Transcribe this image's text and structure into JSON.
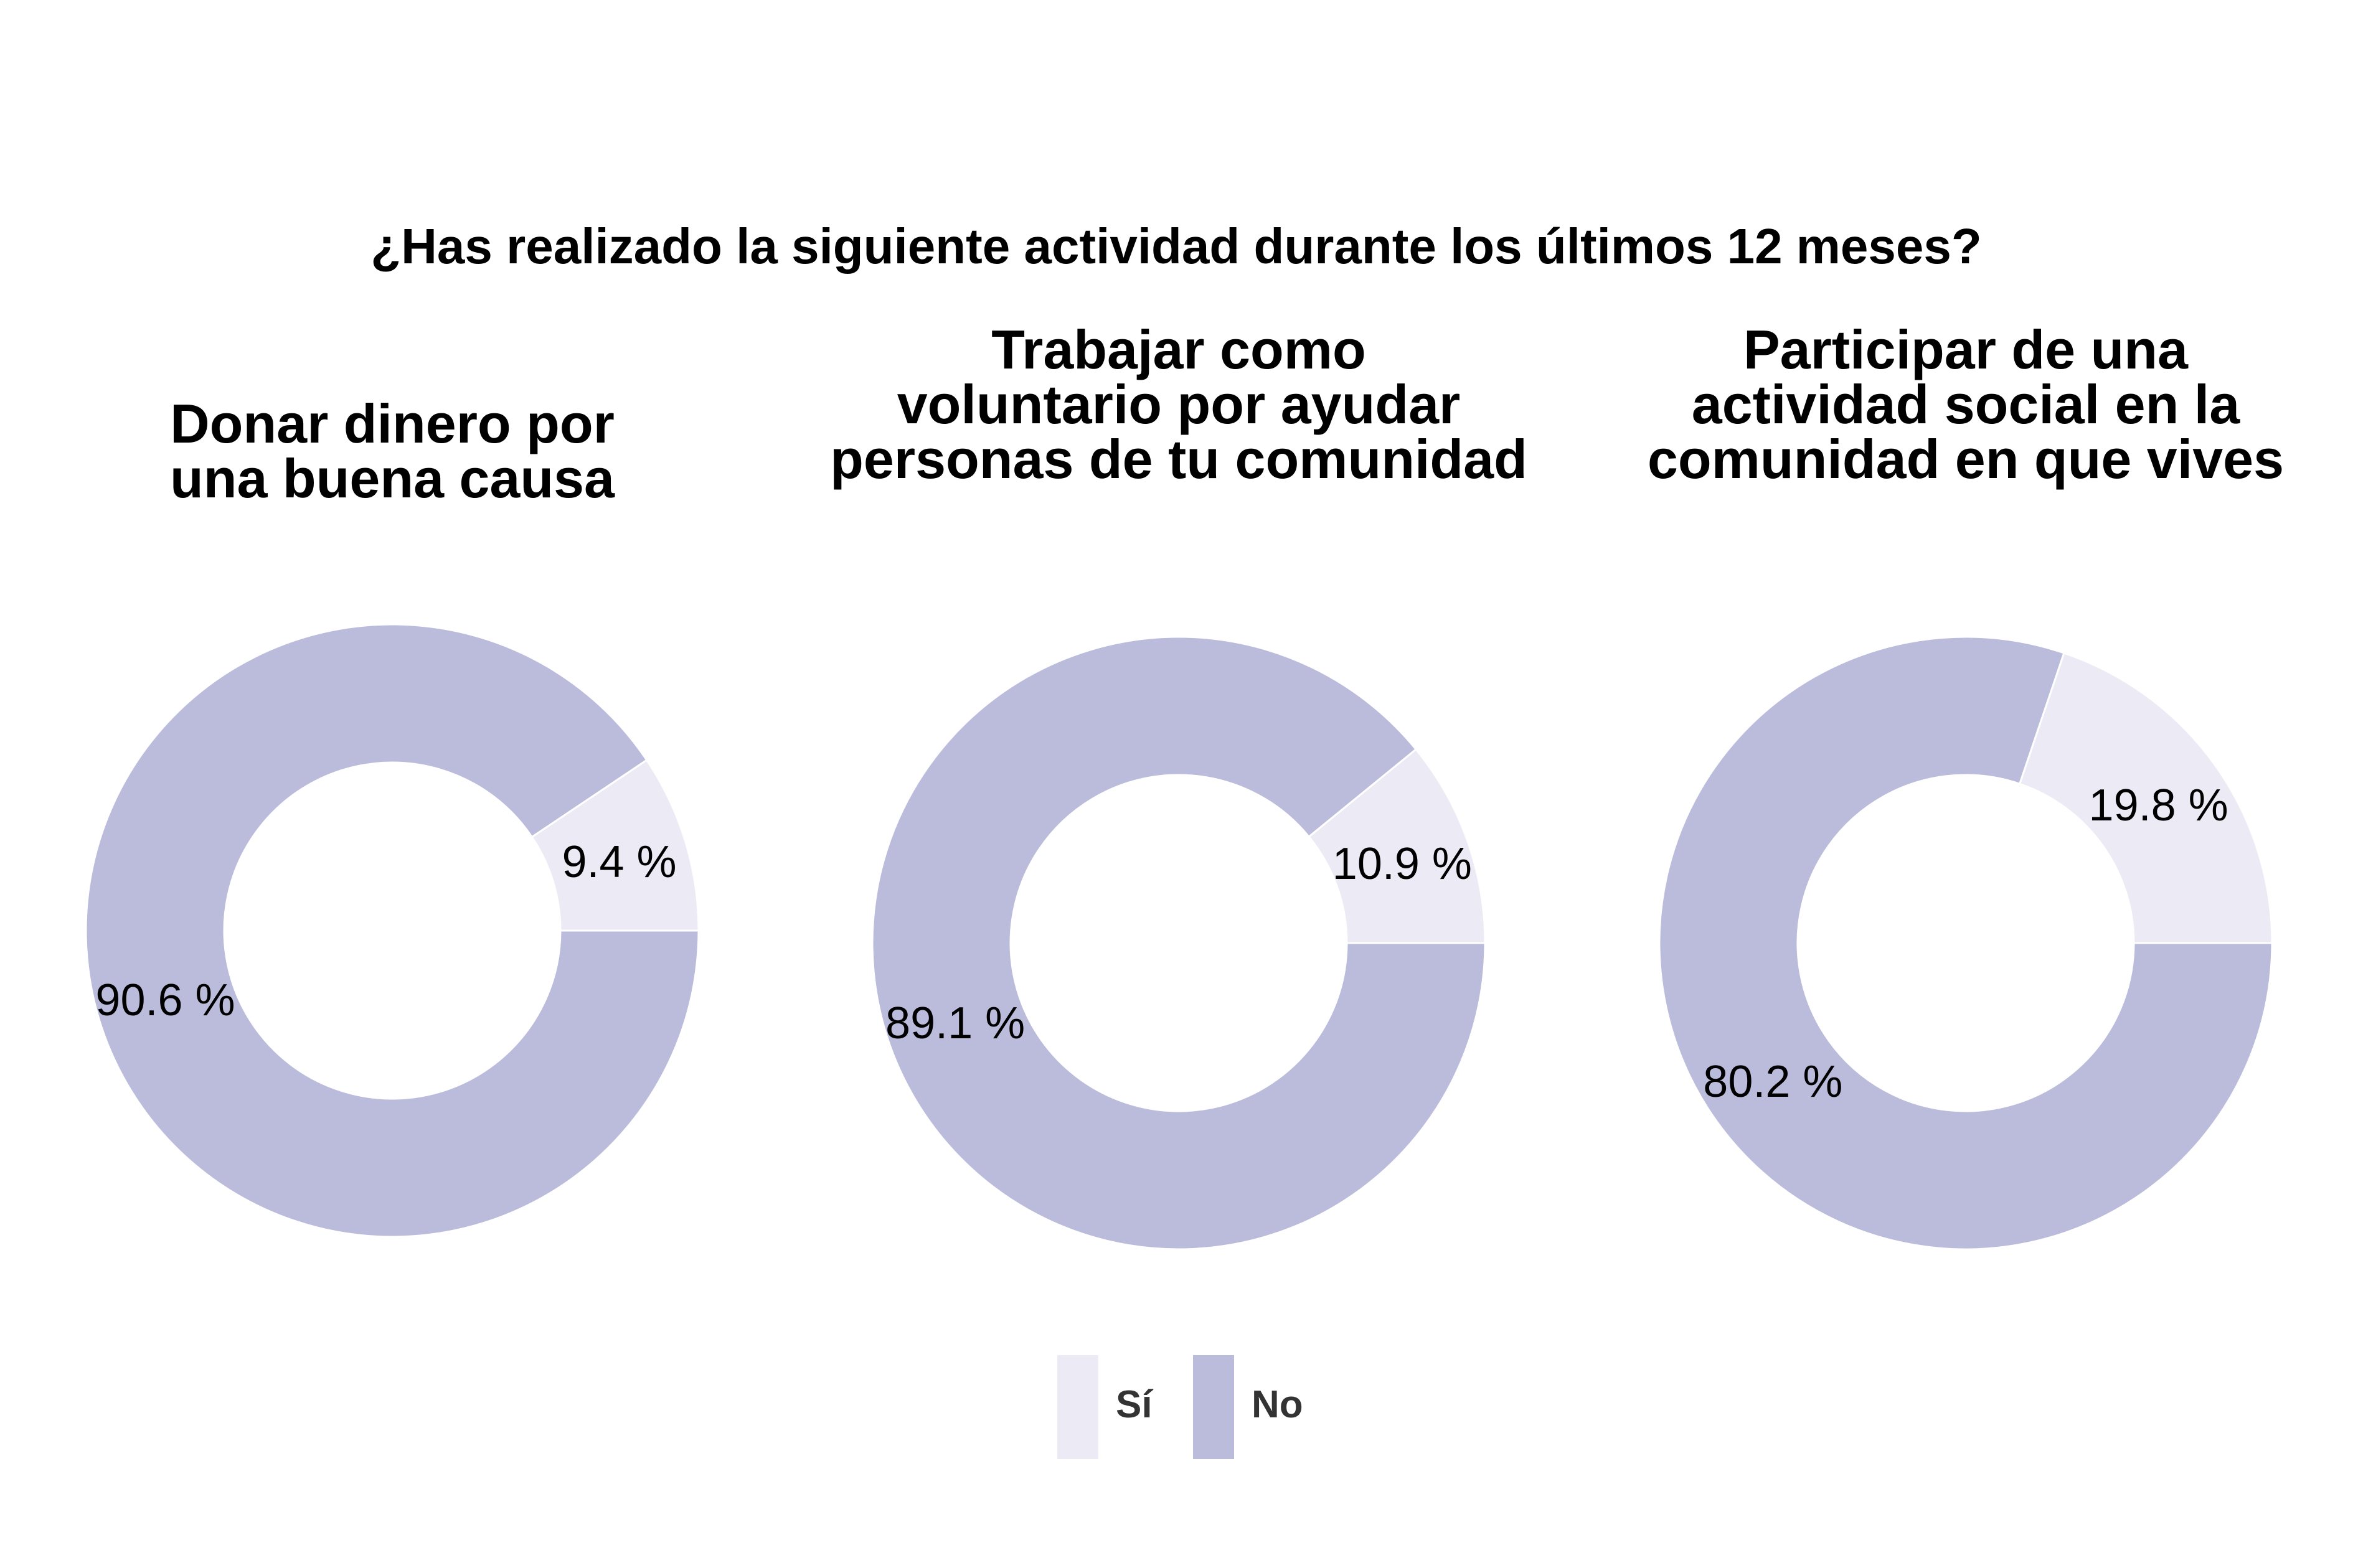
{
  "chart_data": {
    "type": "pie",
    "title": "¿Has realizado la siguiente actividad durante los últimos 12 meses?",
    "legend": {
      "position": "bottom",
      "entries": [
        {
          "label": "Sí",
          "color": "#ECEAF5"
        },
        {
          "label": "No",
          "color": "#BBBCDC"
        }
      ]
    },
    "panels": [
      {
        "title_lines": [
          "Donar dinero por",
          "una buena causa"
        ],
        "slices": [
          {
            "category": "Sí",
            "value": 9.4,
            "label": "9.4 %"
          },
          {
            "category": "No",
            "value": 90.6,
            "label": "90.6 %"
          }
        ]
      },
      {
        "title_lines": [
          "Trabajar como",
          "voluntario por ayudar",
          "personas de tu comunidad"
        ],
        "slices": [
          {
            "category": "Sí",
            "value": 10.9,
            "label": "10.9 %"
          },
          {
            "category": "No",
            "value": 89.1,
            "label": "89.1 %"
          }
        ]
      },
      {
        "title_lines": [
          "Participar de una",
          "actividad social en la",
          "comunidad en que vives"
        ],
        "slices": [
          {
            "category": "Sí",
            "value": 19.8,
            "label": "19.8 %"
          },
          {
            "category": "No",
            "value": 80.2,
            "label": "80.2 %"
          }
        ]
      }
    ]
  }
}
